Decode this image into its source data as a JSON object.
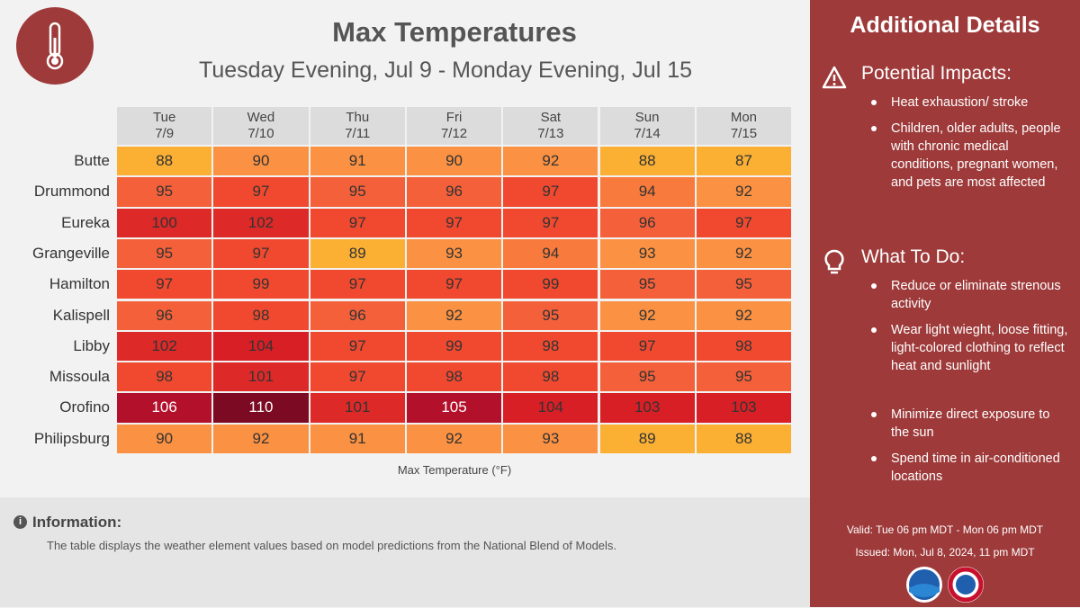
{
  "header": {
    "title": "Max Temperatures",
    "subtitle": "Tuesday Evening, Jul 9 - Monday Evening, Jul 15"
  },
  "table": {
    "columns": [
      {
        "day": "Tue",
        "date": "7/9"
      },
      {
        "day": "Wed",
        "date": "7/10"
      },
      {
        "day": "Thu",
        "date": "7/11"
      },
      {
        "day": "Fri",
        "date": "7/12"
      },
      {
        "day": "Sat",
        "date": "7/13"
      },
      {
        "day": "Sun",
        "date": "7/14"
      },
      {
        "day": "Mon",
        "date": "7/15"
      }
    ],
    "rows": [
      {
        "name": "Butte",
        "values": [
          88,
          90,
          91,
          90,
          92,
          88,
          87
        ],
        "colors": [
          "#fbb034",
          "#fb9142",
          "#fb9142",
          "#fb9142",
          "#fb9142",
          "#fbb034",
          "#fbb034"
        ]
      },
      {
        "name": "Drummond",
        "values": [
          95,
          97,
          95,
          96,
          97,
          94,
          92
        ],
        "colors": [
          "#f4603a",
          "#f0492f",
          "#f4603a",
          "#f4603a",
          "#f0492f",
          "#f87a3c",
          "#fb9142"
        ]
      },
      {
        "name": "Eureka",
        "values": [
          100,
          102,
          97,
          97,
          97,
          96,
          97
        ],
        "colors": [
          "#dd2a28",
          "#dd2a28",
          "#f0492f",
          "#f0492f",
          "#f0492f",
          "#f4603a",
          "#f0492f"
        ]
      },
      {
        "name": "Grangeville",
        "values": [
          95,
          97,
          89,
          93,
          94,
          93,
          92
        ],
        "colors": [
          "#f4603a",
          "#f0492f",
          "#fbb034",
          "#fb9142",
          "#f87a3c",
          "#fb9142",
          "#fb9142"
        ]
      },
      {
        "name": "Hamilton",
        "values": [
          97,
          99,
          97,
          97,
          99,
          95,
          95
        ],
        "colors": [
          "#f0492f",
          "#f0492f",
          "#f0492f",
          "#f0492f",
          "#f0492f",
          "#f4603a",
          "#f4603a"
        ]
      },
      {
        "name": "Kalispell",
        "values": [
          96,
          98,
          96,
          92,
          95,
          92,
          92
        ],
        "colors": [
          "#f4603a",
          "#f0492f",
          "#f4603a",
          "#fb9142",
          "#f4603a",
          "#fb9142",
          "#fb9142"
        ]
      },
      {
        "name": "Libby",
        "values": [
          102,
          104,
          97,
          99,
          98,
          97,
          98
        ],
        "colors": [
          "#dd2a28",
          "#d81f26",
          "#f0492f",
          "#f0492f",
          "#f0492f",
          "#f0492f",
          "#f0492f"
        ]
      },
      {
        "name": "Missoula",
        "values": [
          98,
          101,
          97,
          98,
          98,
          95,
          95
        ],
        "colors": [
          "#f0492f",
          "#dd2a28",
          "#f0492f",
          "#f0492f",
          "#f0492f",
          "#f4603a",
          "#f4603a"
        ]
      },
      {
        "name": "Orofino",
        "values": [
          106,
          110,
          101,
          105,
          104,
          103,
          103
        ],
        "colors": [
          "#b3102c",
          "#7b0a22",
          "#dd2a28",
          "#b3102c",
          "#d81f26",
          "#d81f26",
          "#d81f26"
        ]
      },
      {
        "name": "Philipsburg",
        "values": [
          90,
          92,
          91,
          92,
          93,
          89,
          88
        ],
        "colors": [
          "#fb9142",
          "#fb9142",
          "#fb9142",
          "#fb9142",
          "#fb9142",
          "#fbb034",
          "#fbb034"
        ]
      }
    ],
    "caption": "Max Temperature (°F)"
  },
  "information": {
    "heading": "Information:",
    "text": "The table displays the weather element values based on model predictions from the National Blend of Models."
  },
  "details": {
    "title": "Additional Details",
    "sections": [
      {
        "heading": "Potential Impacts:",
        "items": [
          "Heat exhaustion/ stroke",
          "Children, older adults, people with chronic medical conditions, pregnant women, and pets are most affected"
        ]
      },
      {
        "heading": "What To Do:",
        "items": [
          "Reduce or eliminate strenous activity",
          "Wear light wieght, loose fitting, light-colored clothing to reflect heat and sunlight",
          "Minimize direct exposure to the sun",
          "Spend time in air-conditioned locations"
        ]
      }
    ],
    "valid": "Valid: Tue 06 pm MDT - Mon 06 pm MDT",
    "issued": "Issued: Mon, Jul 8, 2024, 11 pm MDT"
  }
}
